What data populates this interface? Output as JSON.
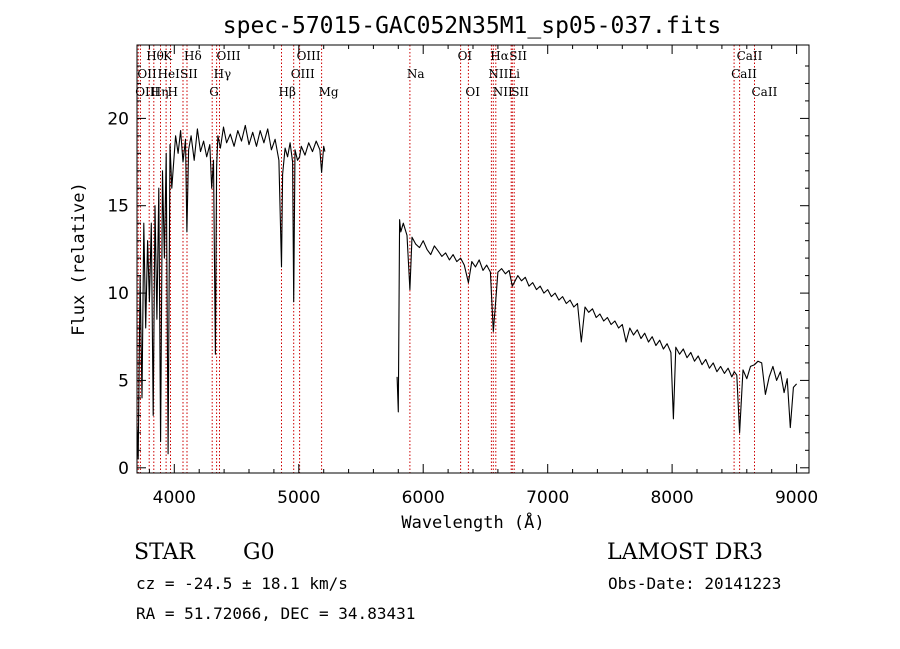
{
  "chart_data": {
    "type": "line",
    "title": "spec-57015-GAC052N35M1_sp05-037.fits",
    "xlabel": "Wavelength (Å)",
    "ylabel": "Flux (relative)",
    "xlim": [
      3700,
      9100
    ],
    "ylim": [
      -0.3,
      24.2
    ],
    "x_ticks": [
      4000,
      5000,
      6000,
      7000,
      8000,
      9000
    ],
    "y_ticks": [
      0,
      5,
      10,
      15,
      20
    ],
    "gap": [
      5210,
      5790
    ],
    "series": [
      {
        "name": "spectrum",
        "color": "#000000",
        "segments": [
          {
            "x": [
              3700,
              3710,
              3725,
              3740,
              3755,
              3770,
              3785,
              3800,
              3815,
              3830,
              3845,
              3860,
              3875,
              3890,
              3905,
              3920,
              3935,
              3950,
              3965,
              3980,
              3995,
              4010,
              4030,
              4050,
              4070,
              4090,
              4101,
              4115,
              4135,
              4160,
              4185,
              4210,
              4235,
              4260,
              4285,
              4300,
              4315,
              4330,
              4340,
              4350,
              4370,
              4395,
              4420,
              4450,
              4480,
              4510,
              4540,
              4570,
              4600,
              4630,
              4660,
              4690,
              4720,
              4750,
              4780,
              4810,
              4840,
              4861,
              4870,
              4890,
              4910,
              4930,
              4950,
              4959,
              4970,
              4990,
              5007,
              5020,
              5050,
              5080,
              5110,
              5140,
              5170,
              5183,
              5200,
              5210
            ],
            "y": [
              2.5,
              0.5,
              11,
              4,
              14,
              8,
              13,
              9.5,
              14,
              3,
              15,
              8.5,
              16,
              1.5,
              17,
              12,
              18,
              0.8,
              18.5,
              16,
              17.5,
              19,
              18,
              19.3,
              17.5,
              18.8,
              13.5,
              18.2,
              19,
              17.6,
              19.4,
              18.1,
              18.7,
              17.8,
              18.5,
              16,
              17.6,
              6.5,
              17.2,
              19,
              18.3,
              19.5,
              18.6,
              19.1,
              18.4,
              19.3,
              18.7,
              19.6,
              18.5,
              19.2,
              18.4,
              19.3,
              18.6,
              19.4,
              18.2,
              18.8,
              17.6,
              11.5,
              16.8,
              18.3,
              17.8,
              18.6,
              17.5,
              9.5,
              18.2,
              17.6,
              17.8,
              18.4,
              17.9,
              18.6,
              18.1,
              18.7,
              18.2,
              16.9,
              18.4,
              18.1
            ]
          },
          {
            "x": [
              5790,
              5800,
              5810,
              5820,
              5840,
              5870,
              5893,
              5910,
              5940,
              5970,
              6000,
              6030,
              6060,
              6090,
              6120,
              6150,
              6180,
              6210,
              6240,
              6270,
              6300,
              6330,
              6363,
              6390,
              6420,
              6450,
              6480,
              6510,
              6540,
              6563,
              6583,
              6600,
              6630,
              6660,
              6690,
              6716,
              6731,
              6760,
              6790,
              6820,
              6850,
              6880,
              6910,
              6940,
              6970,
              7000,
              7030,
              7060,
              7090,
              7120,
              7150,
              7180,
              7210,
              7240,
              7270,
              7300,
              7330,
              7360,
              7390,
              7420,
              7450,
              7480,
              7510,
              7540,
              7570,
              7600,
              7630,
              7660,
              7690,
              7720,
              7750,
              7780,
              7810,
              7840,
              7870,
              7900,
              7930,
              7960,
              7990,
              8010,
              8030,
              8060,
              8090,
              8120,
              8150,
              8180,
              8210,
              8240,
              8270,
              8300,
              8330,
              8360,
              8390,
              8420,
              8450,
              8480,
              8500,
              8520,
              8542,
              8570,
              8600,
              8630,
              8662,
              8690,
              8720,
              8750,
              8780,
              8810,
              8840,
              8870,
              8900,
              8925,
              8950,
              8975,
              9000
            ],
            "y": [
              5.2,
              3.2,
              14.2,
              13.5,
              14,
              13.3,
              10.2,
              13.2,
              12.8,
              12.6,
              13,
              12.5,
              12.2,
              12.7,
              12.4,
              12.1,
              12.3,
              11.9,
              12.2,
              11.8,
              12,
              11.6,
              10.6,
              11.8,
              11.5,
              11.9,
              11.3,
              11.6,
              11.2,
              7.8,
              9.6,
              11.2,
              11.4,
              11.1,
              11.3,
              10.4,
              10.6,
              11,
              10.7,
              10.9,
              10.4,
              10.6,
              10.2,
              10.4,
              10,
              10.2,
              9.8,
              10,
              9.6,
              9.8,
              9.4,
              9.6,
              9.2,
              9.4,
              7.2,
              9.2,
              8.9,
              9.1,
              8.6,
              8.8,
              8.4,
              8.6,
              8.2,
              8.4,
              8,
              8.2,
              7.2,
              8,
              7.6,
              7.9,
              7.4,
              7.7,
              7.2,
              7.5,
              7,
              7.3,
              6.8,
              7.1,
              6.6,
              2.8,
              6.9,
              6.5,
              6.8,
              6.3,
              6.6,
              6.1,
              6.4,
              5.9,
              6.2,
              5.7,
              6,
              5.5,
              5.8,
              5.4,
              5.7,
              5.2,
              5.5,
              5.3,
              2,
              5.6,
              5.1,
              5.8,
              5.9,
              6.1,
              6,
              4.2,
              5.2,
              5.8,
              5,
              5.5,
              4.3,
              5.1,
              2.3,
              4.6,
              4.8
            ]
          }
        ]
      }
    ],
    "spectral_lines": [
      {
        "name": "OII",
        "wave": 3727,
        "row": 1
      },
      {
        "name": "Hθ",
        "wave": 3798,
        "row": 0
      },
      {
        "name": "OIII",
        "wave": 3710,
        "row": 2
      },
      {
        "name": "Hη",
        "wave": 3835,
        "row": 2
      },
      {
        "name": "HeI",
        "wave": 3889,
        "row": 1
      },
      {
        "name": "K",
        "wave": 3934,
        "row": 0
      },
      {
        "name": "H",
        "wave": 3969,
        "row": 2
      },
      {
        "name": "SII",
        "wave": 4070,
        "row": 1
      },
      {
        "name": "Hδ",
        "wave": 4102,
        "row": 0
      },
      {
        "name": "G",
        "wave": 4304,
        "row": 2
      },
      {
        "name": "Hγ",
        "wave": 4340,
        "row": 1
      },
      {
        "name": "OIII",
        "wave": 4363,
        "row": 0
      },
      {
        "name": "Hβ",
        "wave": 4861,
        "row": 2
      },
      {
        "name": "OIII",
        "wave": 4959,
        "row": 1
      },
      {
        "name": "OIII",
        "wave": 5007,
        "row": 0
      },
      {
        "name": "Mg",
        "wave": 5183,
        "row": 2
      },
      {
        "name": "Na",
        "wave": 5893,
        "row": 1
      },
      {
        "name": "OI",
        "wave": 6300,
        "row": 0
      },
      {
        "name": "OI",
        "wave": 6363,
        "row": 2
      },
      {
        "name": "NII",
        "wave": 6548,
        "row": 1
      },
      {
        "name": "Hα",
        "wave": 6563,
        "row": 0
      },
      {
        "name": "NII",
        "wave": 6583,
        "row": 2
      },
      {
        "name": "Li",
        "wave": 6707,
        "row": 1
      },
      {
        "name": "SII",
        "wave": 6716,
        "row": 0
      },
      {
        "name": "SII",
        "wave": 6731,
        "row": 2
      },
      {
        "name": "CaII",
        "wave": 8498,
        "row": 1
      },
      {
        "name": "CaII",
        "wave": 8542,
        "row": 0
      },
      {
        "name": "CaII",
        "wave": 8662,
        "row": 2
      }
    ],
    "line_marker_color": "#cc0000"
  },
  "info": {
    "object_class": "STAR",
    "subclass": "G0",
    "survey": "LAMOST DR3",
    "redshift_text": "cz = -24.5 ± 18.1 km/s",
    "obs_date_text": "Obs-Date: 20141223",
    "coords_text": "RA =  51.72066, DEC =  34.83431"
  }
}
